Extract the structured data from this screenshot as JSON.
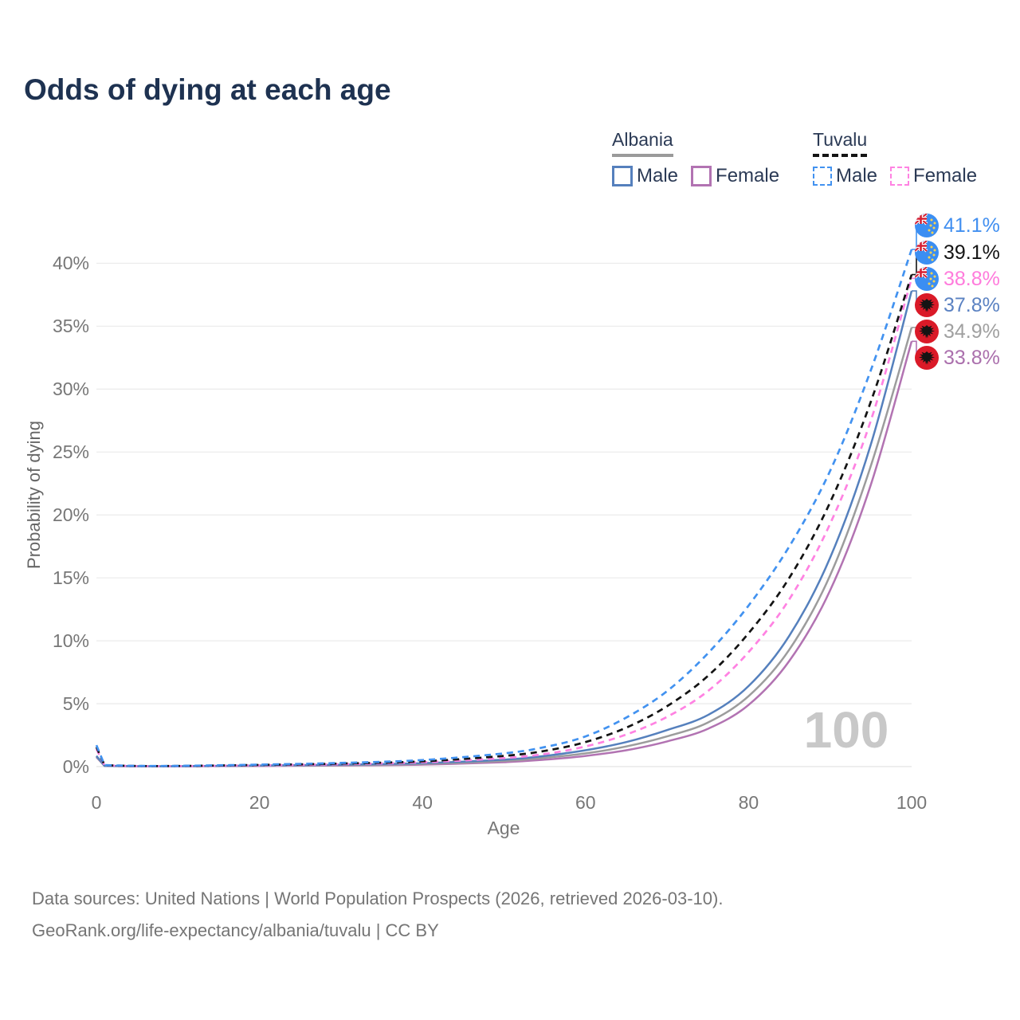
{
  "title": "Odds of dying at each age",
  "legend": {
    "groups": [
      {
        "name": "Albania",
        "line_style": "solid",
        "underline_color": "#9a9a9a",
        "items": [
          {
            "label": "Male",
            "color": "#5580bd"
          },
          {
            "label": "Female",
            "color": "#b273b2"
          }
        ]
      },
      {
        "name": "Tuvalu",
        "line_style": "dashed",
        "underline_color": "#141414",
        "items": [
          {
            "label": "Male",
            "color": "#4292f0"
          },
          {
            "label": "Female",
            "color": "#ff82e2"
          }
        ]
      }
    ]
  },
  "watermark": "100",
  "footer": {
    "line1": "Data sources: United Nations | World Population Prospects (2026, retrieved 2026-03-10).",
    "line2": "GeoRank.org/life-expectancy/albania/tuvalu | CC BY"
  },
  "chart_data": {
    "type": "line",
    "title": "Odds of dying at each age",
    "xlabel": "Age",
    "ylabel": "Probability of dying",
    "xlim": [
      0,
      100
    ],
    "ylim": [
      0,
      43
    ],
    "grid": true,
    "legend_position": "top-right",
    "xticks": [
      0,
      20,
      40,
      60,
      80,
      100
    ],
    "ytick_values": [
      0,
      5,
      10,
      15,
      20,
      25,
      30,
      35,
      40
    ],
    "ytick_labels": [
      "0%",
      "5%",
      "10%",
      "15%",
      "20%",
      "25%",
      "30%",
      "35%",
      "40%"
    ],
    "x": [
      0,
      1,
      5,
      10,
      20,
      30,
      40,
      50,
      55,
      60,
      65,
      70,
      75,
      80,
      85,
      90,
      95,
      100
    ],
    "series": [
      {
        "name": "Tuvalu Male",
        "country": "Tuvalu",
        "sex": "Male",
        "color": "#4292f0",
        "dashed": true,
        "flag": "tuvalu",
        "end_label": "41.1%",
        "label_color": "#418ff0",
        "values": [
          1.7,
          0.12,
          0.06,
          0.06,
          0.16,
          0.29,
          0.52,
          1.05,
          1.55,
          2.4,
          3.9,
          6.0,
          9.0,
          12.8,
          17.5,
          23.5,
          31.5,
          41.1
        ]
      },
      {
        "name": "Tuvalu",
        "country": "Tuvalu",
        "sex": "Both",
        "color": "#141414",
        "dashed": true,
        "flag": "tuvalu",
        "end_label": "39.1%",
        "label_color": "#141414",
        "values": [
          1.55,
          0.11,
          0.05,
          0.05,
          0.13,
          0.24,
          0.42,
          0.85,
          1.25,
          1.95,
          3.1,
          4.8,
          7.2,
          10.6,
          15.0,
          21.0,
          29.0,
          39.1
        ]
      },
      {
        "name": "Tuvalu Female",
        "country": "Tuvalu",
        "sex": "Female",
        "color": "#ff82e2",
        "dashed": true,
        "flag": "tuvalu",
        "end_label": "38.8%",
        "label_color": "#ff7bdc",
        "values": [
          1.4,
          0.1,
          0.04,
          0.04,
          0.1,
          0.19,
          0.34,
          0.68,
          1.0,
          1.6,
          2.55,
          3.95,
          6.0,
          9.1,
          13.3,
          19.3,
          27.5,
          38.8
        ]
      },
      {
        "name": "Albania Male",
        "country": "Albania",
        "sex": "Male",
        "color": "#5580bd",
        "dashed": false,
        "flag": "albania",
        "end_label": "37.8%",
        "label_color": "#5b82c2",
        "values": [
          0.85,
          0.06,
          0.03,
          0.03,
          0.09,
          0.15,
          0.27,
          0.55,
          0.85,
          1.3,
          1.95,
          2.9,
          4.1,
          6.4,
          10.4,
          16.6,
          25.6,
          37.8
        ]
      },
      {
        "name": "Albania",
        "country": "Albania",
        "sex": "Both",
        "color": "#9c9c9c",
        "dashed": false,
        "flag": "albania",
        "end_label": "34.9%",
        "label_color": "#a0a0a0",
        "values": [
          0.8,
          0.06,
          0.03,
          0.03,
          0.07,
          0.12,
          0.22,
          0.45,
          0.7,
          1.05,
          1.6,
          2.4,
          3.5,
          5.6,
          9.3,
          15.2,
          23.9,
          34.9
        ]
      },
      {
        "name": "Albania Female",
        "country": "Albania",
        "sex": "Female",
        "color": "#b273b2",
        "dashed": false,
        "flag": "albania",
        "end_label": "33.8%",
        "label_color": "#ab70ad",
        "values": [
          0.75,
          0.05,
          0.02,
          0.02,
          0.05,
          0.09,
          0.16,
          0.35,
          0.55,
          0.85,
          1.3,
          2.0,
          3.0,
          4.9,
          8.4,
          14.0,
          22.4,
          33.8
        ]
      }
    ]
  }
}
